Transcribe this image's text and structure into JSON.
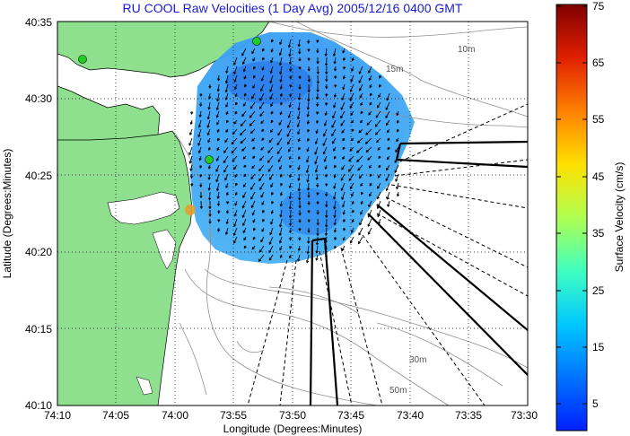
{
  "title": "RU COOL Raw Velocities (1 Day Avg) 2005/12/16 0400 GMT",
  "map": {
    "xlabel": "Longitude (Degrees:Minutes)",
    "ylabel": "Latitude (Degrees:Minutes)",
    "x_ticks": [
      "74:10",
      "74:05",
      "74:00",
      "73:55",
      "73:50",
      "73:45",
      "73:40",
      "73:35",
      "73:30"
    ],
    "y_ticks": [
      "40:35",
      "40:30",
      "40:25",
      "40:20",
      "40:15",
      "40:10"
    ],
    "contour_labels": [
      "10m",
      "15m",
      "30m",
      "50m"
    ],
    "colors": {
      "land": "#8ee08e",
      "water": "#ffffff",
      "contour": "#909090",
      "station": "#22cc22"
    }
  },
  "colorbar": {
    "label": "Surface Velocity (cm/s)",
    "ticks": [
      "75",
      "65",
      "55",
      "45",
      "35",
      "25",
      "15",
      "5"
    ],
    "range": [
      0,
      75
    ]
  }
}
